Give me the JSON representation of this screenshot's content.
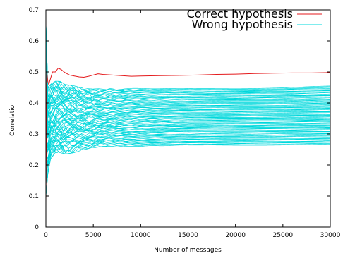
{
  "chart_data": {
    "type": "line",
    "xlabel": "Number of messages",
    "ylabel": "Correlation",
    "xlim": [
      0,
      30000
    ],
    "ylim": [
      0,
      0.7
    ],
    "x_ticks": [
      "0",
      "5000",
      "10000",
      "15000",
      "20000",
      "25000",
      "30000"
    ],
    "y_ticks": [
      "0",
      "0.1",
      "0.2",
      "0.3",
      "0.4",
      "0.5",
      "0.6",
      "0.7"
    ],
    "grid": false,
    "legend_position": "top-right",
    "series": [
      {
        "name": "Correct hypothesis",
        "color": "#e41a1c",
        "x": [
          0,
          100,
          200,
          300,
          500,
          700,
          1000,
          1300,
          1600,
          2000,
          2500,
          3000,
          3500,
          4000,
          4500,
          5000,
          5500,
          6000,
          7000,
          8000,
          9000,
          10000,
          12000,
          14000,
          16000,
          18000,
          20000,
          22000,
          24000,
          26000,
          28000,
          30000
        ],
        "y": [
          0.08,
          0.5,
          0.47,
          0.46,
          0.48,
          0.5,
          0.5,
          0.512,
          0.508,
          0.498,
          0.49,
          0.487,
          0.484,
          0.483,
          0.486,
          0.49,
          0.494,
          0.492,
          0.49,
          0.488,
          0.486,
          0.487,
          0.488,
          0.489,
          0.49,
          0.492,
          0.493,
          0.495,
          0.496,
          0.497,
          0.497,
          0.498
        ]
      },
      {
        "name": "Wrong hypothesis",
        "color": "#00d8dc",
        "band_upper_x": [
          0,
          200,
          500,
          1000,
          1500,
          2000,
          3000,
          4000,
          5000,
          6000,
          8000,
          10000,
          15000,
          20000,
          25000,
          30000
        ],
        "band_upper_y": [
          0.66,
          0.45,
          0.46,
          0.47,
          0.47,
          0.46,
          0.455,
          0.447,
          0.445,
          0.447,
          0.448,
          0.447,
          0.447,
          0.448,
          0.45,
          0.455
        ],
        "band_lower_x": [
          0,
          200,
          500,
          1000,
          1500,
          2000,
          3000,
          4000,
          5000,
          6000,
          8000,
          10000,
          15000,
          20000,
          25000,
          30000
        ],
        "band_lower_y": [
          0.1,
          0.17,
          0.22,
          0.24,
          0.24,
          0.235,
          0.24,
          0.25,
          0.255,
          0.26,
          0.26,
          0.26,
          0.262,
          0.263,
          0.264,
          0.265
        ]
      }
    ]
  }
}
